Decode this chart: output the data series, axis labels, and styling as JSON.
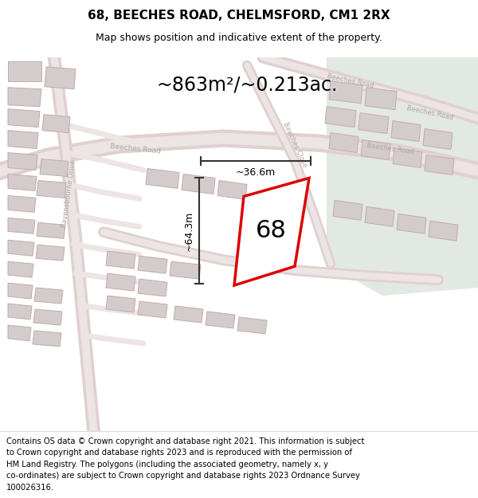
{
  "title_line1": "68, BEECHES ROAD, CHELMSFORD, CM1 2RX",
  "title_line2": "Map shows position and indicative extent of the property.",
  "area_text": "~863m²/~0.213ac.",
  "label_68": "68",
  "dim_height": "~64.3m",
  "dim_width": "~36.6m",
  "footer_lines": [
    "Contains OS data © Crown copyright and database right 2021. This information is subject",
    "to Crown copyright and database rights 2023 and is reproduced with the permission of",
    "HM Land Registry. The polygons (including the associated geometry, namely x, y",
    "co-ordinates) are subject to Crown copyright and database rights 2023 Ordnance Survey",
    "100026316."
  ],
  "bg_left_color": "#f5efef",
  "bg_right_color": "#e2e8e2",
  "title_bg": "#ffffff",
  "footer_bg": "#ffffff",
  "property_poly_edge": "#dd0000",
  "dim_line_color": "#333333",
  "road_outer": "#e0d0d0",
  "road_inner": "#ede4e4",
  "building_fill": "#d4cccc",
  "building_edge": "#c4aaaa",
  "road_label_color": "#aaaaaa"
}
